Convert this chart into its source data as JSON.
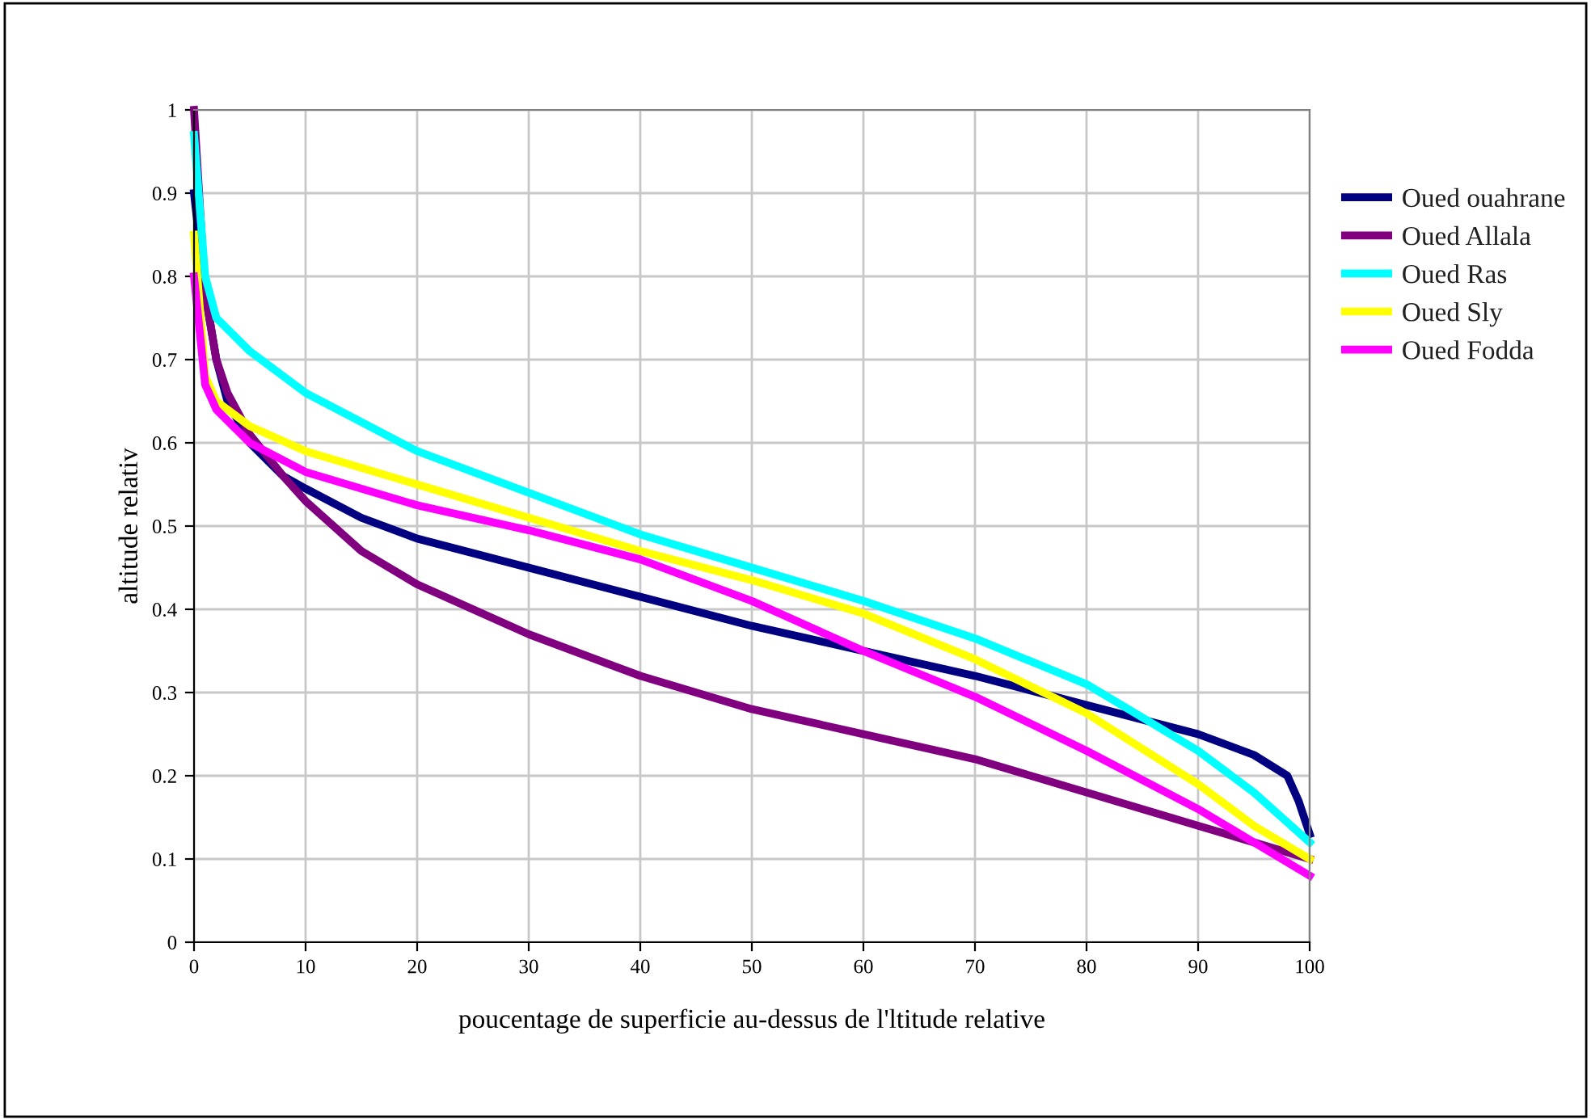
{
  "chart_data": {
    "type": "line",
    "xlabel": "poucentage de superficie au-dessus de l'ltitude relative",
    "ylabel": "altitude relativ",
    "xlim": [
      0,
      100
    ],
    "ylim": [
      0,
      1
    ],
    "xticks": [
      0,
      10,
      20,
      30,
      40,
      50,
      60,
      70,
      80,
      90,
      100
    ],
    "yticks": [
      0,
      0.1,
      0.2,
      0.3,
      0.4,
      0.5,
      0.6,
      0.7,
      0.8,
      0.9,
      1
    ],
    "grid": true,
    "legend": "right",
    "line_style": "solid",
    "marker": "none",
    "series": [
      {
        "name": "Oued ouahrane",
        "color": "#000080",
        "x": [
          0,
          1,
          2,
          3,
          5,
          8,
          10,
          15,
          20,
          30,
          40,
          50,
          60,
          70,
          80,
          90,
          95,
          98,
          99,
          100
        ],
        "values": [
          0.9,
          0.78,
          0.7,
          0.65,
          0.6,
          0.56,
          0.545,
          0.51,
          0.485,
          0.45,
          0.415,
          0.38,
          0.35,
          0.32,
          0.285,
          0.25,
          0.225,
          0.2,
          0.17,
          0.13
        ]
      },
      {
        "name": "Oued Allala",
        "color": "#800080",
        "x": [
          0,
          1,
          2,
          3,
          5,
          8,
          10,
          15,
          20,
          30,
          40,
          50,
          60,
          70,
          80,
          90,
          100
        ],
        "values": [
          1.0,
          0.78,
          0.7,
          0.66,
          0.61,
          0.56,
          0.53,
          0.47,
          0.43,
          0.37,
          0.32,
          0.28,
          0.25,
          0.22,
          0.18,
          0.14,
          0.1
        ]
      },
      {
        "name": "Oued Ras",
        "color": "#00ffff",
        "x": [
          0,
          1,
          2,
          5,
          10,
          20,
          30,
          40,
          50,
          60,
          70,
          80,
          90,
          95,
          100
        ],
        "values": [
          0.97,
          0.8,
          0.75,
          0.71,
          0.66,
          0.59,
          0.54,
          0.49,
          0.45,
          0.41,
          0.365,
          0.31,
          0.23,
          0.18,
          0.12
        ]
      },
      {
        "name": "Oued Sly",
        "color": "#ffff00",
        "x": [
          0,
          1,
          2,
          5,
          10,
          20,
          30,
          40,
          50,
          60,
          70,
          80,
          90,
          95,
          100
        ],
        "values": [
          0.85,
          0.68,
          0.65,
          0.62,
          0.59,
          0.55,
          0.51,
          0.47,
          0.435,
          0.395,
          0.34,
          0.275,
          0.19,
          0.14,
          0.1
        ]
      },
      {
        "name": "Oued Fodda",
        "color": "#ff00ff",
        "x": [
          0,
          1,
          2,
          5,
          10,
          20,
          30,
          40,
          50,
          60,
          70,
          80,
          90,
          95,
          100
        ],
        "values": [
          0.8,
          0.67,
          0.64,
          0.6,
          0.565,
          0.525,
          0.495,
          0.46,
          0.41,
          0.35,
          0.295,
          0.23,
          0.16,
          0.12,
          0.08
        ]
      }
    ]
  }
}
